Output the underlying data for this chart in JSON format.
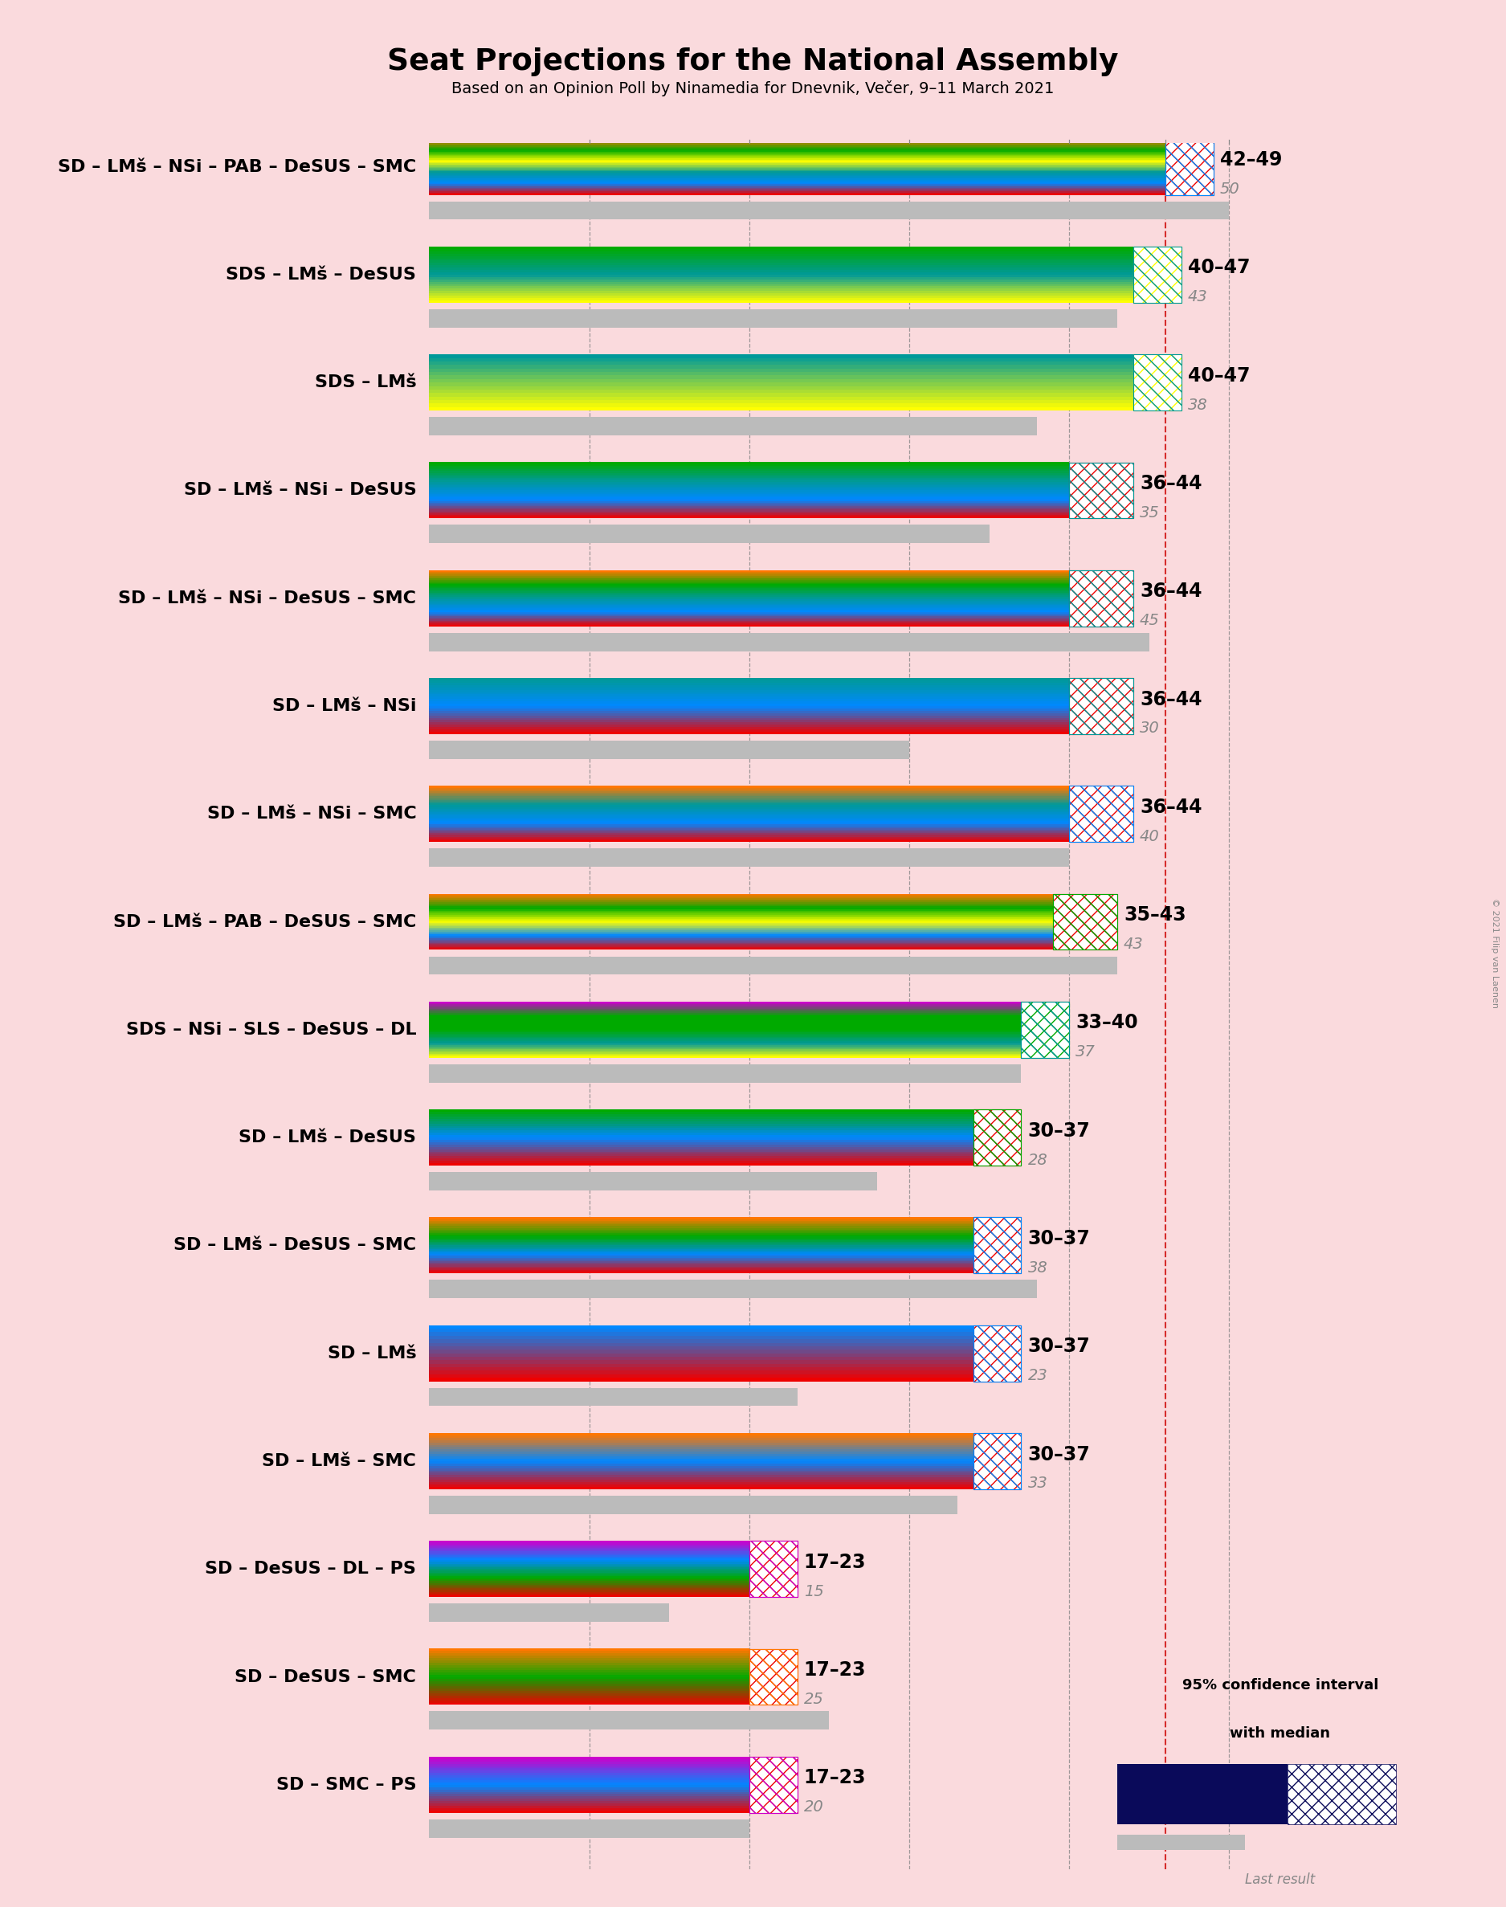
{
  "title": "Seat Projections for the National Assembly",
  "subtitle": "Based on an Opinion Poll by Ninamedia for Dnevnik, Večer, 9–11 March 2021",
  "background_color": "#fadadd",
  "copyright": "© 2021 Filip van Laenen",
  "xlim": [
    0,
    56
  ],
  "majority_line": 46,
  "coalitions": [
    {
      "name": "SD – LMš – NSi – PAB – DeSUS – SMC",
      "low": 42,
      "high": 49,
      "median": 46,
      "last": 50,
      "stripe_colors": [
        "#EE0000",
        "#0088FF",
        "#009999",
        "#FFFF00",
        "#00AA00",
        "#FF7700"
      ],
      "ci_color1": "#EE0000",
      "ci_color2": "#0088FF"
    },
    {
      "name": "SDS – LMš – DeSUS",
      "low": 40,
      "high": 47,
      "median": 44,
      "last": 43,
      "stripe_colors": [
        "#FFFF00",
        "#009999",
        "#00AA00"
      ],
      "ci_color1": "#FFFF00",
      "ci_color2": "#009999"
    },
    {
      "name": "SDS – LMš",
      "low": 40,
      "high": 47,
      "median": 44,
      "last": 38,
      "stripe_colors": [
        "#FFFF00",
        "#009999"
      ],
      "ci_color1": "#FFFF00",
      "ci_color2": "#009999"
    },
    {
      "name": "SD – LMš – NSi – DeSUS",
      "low": 36,
      "high": 44,
      "median": 40,
      "last": 35,
      "stripe_colors": [
        "#EE0000",
        "#0088FF",
        "#009999",
        "#00AA00"
      ],
      "ci_color1": "#EE0000",
      "ci_color2": "#009999"
    },
    {
      "name": "SD – LMš – NSi – DeSUS – SMC",
      "low": 36,
      "high": 44,
      "median": 40,
      "last": 45,
      "stripe_colors": [
        "#EE0000",
        "#0088FF",
        "#009999",
        "#00AA00",
        "#FF7700"
      ],
      "ci_color1": "#EE0000",
      "ci_color2": "#009999"
    },
    {
      "name": "SD – LMš – NSi",
      "low": 36,
      "high": 44,
      "median": 40,
      "last": 30,
      "stripe_colors": [
        "#EE0000",
        "#0088FF",
        "#009999"
      ],
      "ci_color1": "#EE0000",
      "ci_color2": "#009999"
    },
    {
      "name": "SD – LMš – NSi – SMC",
      "low": 36,
      "high": 44,
      "median": 40,
      "last": 40,
      "stripe_colors": [
        "#EE0000",
        "#0088FF",
        "#009999",
        "#FF7700"
      ],
      "ci_color1": "#EE0000",
      "ci_color2": "#0088FF"
    },
    {
      "name": "SD – LMš – PAB – DeSUS – SMC",
      "low": 35,
      "high": 43,
      "median": 39,
      "last": 43,
      "stripe_colors": [
        "#EE0000",
        "#0088FF",
        "#FFFF00",
        "#00AA00",
        "#FF7700"
      ],
      "ci_color1": "#EE0000",
      "ci_color2": "#00AA00"
    },
    {
      "name": "SDS – NSi – SLS – DeSUS – DL",
      "low": 33,
      "high": 40,
      "median": 37,
      "last": 37,
      "stripe_colors": [
        "#FFFF00",
        "#009999",
        "#00AA00",
        "#00AA00",
        "#CC00CC"
      ],
      "ci_color1": "#00AA00",
      "ci_color2": "#009999"
    },
    {
      "name": "SD – LMš – DeSUS",
      "low": 30,
      "high": 37,
      "median": 34,
      "last": 28,
      "stripe_colors": [
        "#EE0000",
        "#0088FF",
        "#00AA00"
      ],
      "ci_color1": "#EE0000",
      "ci_color2": "#00AA00"
    },
    {
      "name": "SD – LMš – DeSUS – SMC",
      "low": 30,
      "high": 37,
      "median": 34,
      "last": 38,
      "stripe_colors": [
        "#EE0000",
        "#0088FF",
        "#00AA00",
        "#FF7700"
      ],
      "ci_color1": "#EE0000",
      "ci_color2": "#0088FF"
    },
    {
      "name": "SD – LMš",
      "low": 30,
      "high": 37,
      "median": 34,
      "last": 23,
      "stripe_colors": [
        "#EE0000",
        "#0088FF"
      ],
      "ci_color1": "#EE0000",
      "ci_color2": "#0088FF"
    },
    {
      "name": "SD – LMš – SMC",
      "low": 30,
      "high": 37,
      "median": 34,
      "last": 33,
      "stripe_colors": [
        "#EE0000",
        "#0088FF",
        "#FF7700"
      ],
      "ci_color1": "#EE0000",
      "ci_color2": "#0088FF"
    },
    {
      "name": "SD – DeSUS – DL – PS",
      "low": 17,
      "high": 23,
      "median": 20,
      "last": 15,
      "stripe_colors": [
        "#EE0000",
        "#00AA00",
        "#0088FF",
        "#CC00CC"
      ],
      "ci_color1": "#EE0000",
      "ci_color2": "#CC00CC"
    },
    {
      "name": "SD – DeSUS – SMC",
      "low": 17,
      "high": 23,
      "median": 20,
      "last": 25,
      "stripe_colors": [
        "#EE0000",
        "#00AA00",
        "#FF7700"
      ],
      "ci_color1": "#EE0000",
      "ci_color2": "#FF7700"
    },
    {
      "name": "SD – SMC – PS",
      "low": 17,
      "high": 23,
      "median": 20,
      "last": 20,
      "stripe_colors": [
        "#EE0000",
        "#0088FF",
        "#CC00CC"
      ],
      "ci_color1": "#EE0000",
      "ci_color2": "#CC00CC"
    }
  ]
}
